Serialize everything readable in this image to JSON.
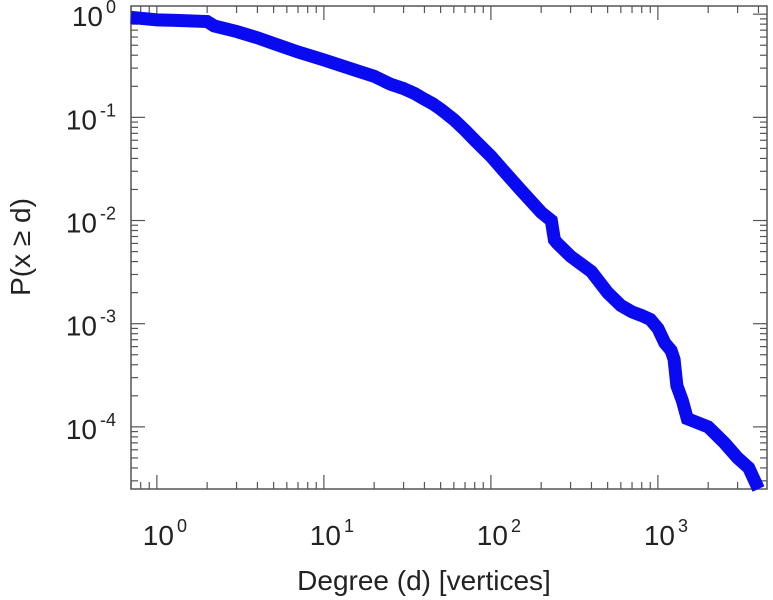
{
  "chart_data": {
    "type": "line",
    "xlabel": "Degree (d) [vertices]",
    "ylabel": "P(x ≥ d)",
    "xscale": "log",
    "yscale": "log",
    "xlim": [
      0.7,
      4500
    ],
    "ylim": [
      2.5e-05,
      1.2
    ],
    "grid": false,
    "legend": "none",
    "x_ticks": [
      {
        "base": "10",
        "exp": "0",
        "value": 1
      },
      {
        "base": "10",
        "exp": "1",
        "value": 10
      },
      {
        "base": "10",
        "exp": "2",
        "value": 100
      },
      {
        "base": "10",
        "exp": "3",
        "value": 1000
      }
    ],
    "y_ticks": [
      {
        "base": "10",
        "exp": "0",
        "value": 1
      },
      {
        "base": "10",
        "exp": "-1",
        "value": 0.1
      },
      {
        "base": "10",
        "exp": "-2",
        "value": 0.01
      },
      {
        "base": "10",
        "exp": "-3",
        "value": 0.001
      },
      {
        "base": "10",
        "exp": "-4",
        "value": 0.0001
      }
    ],
    "series": [
      {
        "color": "#0a0af0",
        "x": [
          0.7,
          1,
          1.3,
          2,
          2.2,
          3,
          4,
          5,
          7,
          10,
          15,
          20,
          25,
          30,
          35,
          40,
          45,
          50,
          60,
          70,
          80,
          100,
          120,
          150,
          200,
          230,
          240,
          250,
          300,
          400,
          500,
          600,
          700,
          800,
          900,
          1000,
          1100,
          1200,
          1250,
          1300,
          1400,
          1500,
          2000,
          2500,
          3000,
          3500,
          3800,
          4000
        ],
        "y": [
          0.93,
          0.88,
          0.87,
          0.85,
          0.77,
          0.68,
          0.59,
          0.52,
          0.43,
          0.36,
          0.29,
          0.25,
          0.21,
          0.19,
          0.17,
          0.15,
          0.135,
          0.12,
          0.095,
          0.075,
          0.06,
          0.042,
          0.03,
          0.02,
          0.012,
          0.01,
          0.0065,
          0.006,
          0.0045,
          0.0032,
          0.002,
          0.0015,
          0.0013,
          0.0012,
          0.0011,
          0.0009,
          0.00065,
          0.00055,
          0.00045,
          0.00025,
          0.00018,
          0.00012,
          0.0001,
          7e-05,
          5e-05,
          4e-05,
          3e-05,
          2.5e-05
        ]
      }
    ]
  }
}
